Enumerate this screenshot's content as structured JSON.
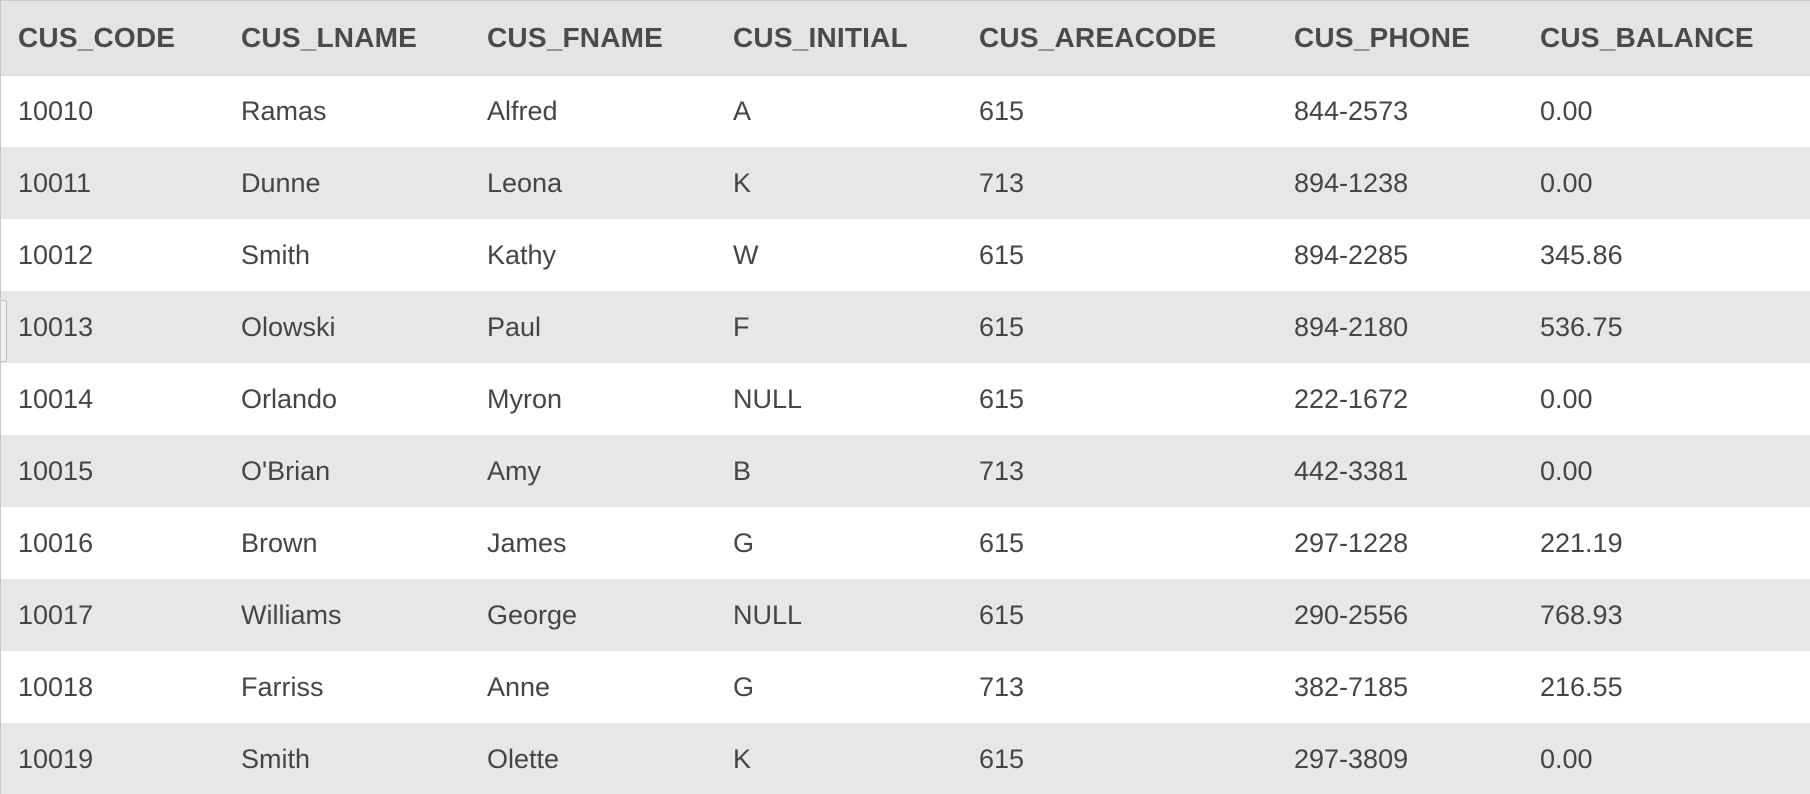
{
  "table": {
    "columns": [
      "CUS_CODE",
      "CUS_LNAME",
      "CUS_FNAME",
      "CUS_INITIAL",
      "CUS_AREACODE",
      "CUS_PHONE",
      "CUS_BALANCE"
    ],
    "rows": [
      [
        "10010",
        "Ramas",
        "Alfred",
        "A",
        "615",
        "844-2573",
        "0.00"
      ],
      [
        "10011",
        "Dunne",
        "Leona",
        "K",
        "713",
        "894-1238",
        "0.00"
      ],
      [
        "10012",
        "Smith",
        "Kathy",
        "W",
        "615",
        "894-2285",
        "345.86"
      ],
      [
        "10013",
        "Olowski",
        "Paul",
        "F",
        "615",
        "894-2180",
        "536.75"
      ],
      [
        "10014",
        "Orlando",
        "Myron",
        "NULL",
        "615",
        "222-1672",
        "0.00"
      ],
      [
        "10015",
        "O'Brian",
        "Amy",
        "B",
        "713",
        "442-3381",
        "0.00"
      ],
      [
        "10016",
        "Brown",
        "James",
        "G",
        "615",
        "297-1228",
        "221.19"
      ],
      [
        "10017",
        "Williams",
        "George",
        "NULL",
        "615",
        "290-2556",
        "768.93"
      ],
      [
        "10018",
        "Farriss",
        "Anne",
        "G",
        "713",
        "382-7185",
        "216.55"
      ],
      [
        "10019",
        "Smith",
        "Olette",
        "K",
        "615",
        "297-3809",
        "0.00"
      ]
    ]
  }
}
